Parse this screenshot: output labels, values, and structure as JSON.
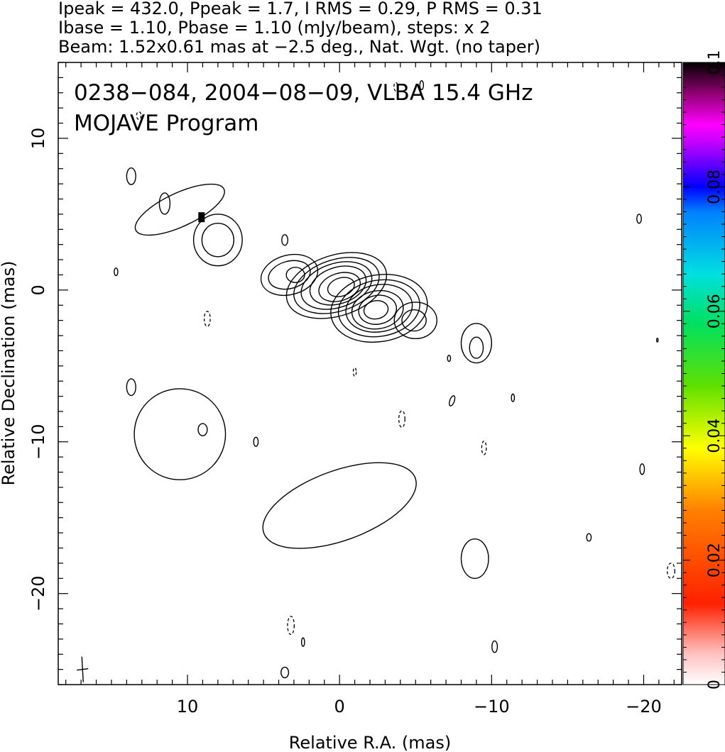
{
  "header": {
    "line1": "Ipeak = 432.0, Ppeak = 1.7, I RMS = 0.29, P RMS = 0.31",
    "line2": "Ibase = 1.10, Pbase = 1.10 (mJy/beam), steps: x 2",
    "line3": "Beam: 1.52x0.61 mas at −2.5 deg., Nat. Wgt. (no taper)"
  },
  "overlay": {
    "title": "0238−084, 2004−08−09, VLBA 15.4 GHz",
    "subtitle": "MOJAVE Program"
  },
  "chart_data": {
    "type": "contour",
    "xlabel": "Relative R.A. (mas)",
    "ylabel": "Relative Declination (mas)",
    "xlim": [
      18.5,
      -22.5
    ],
    "ylim": [
      -26.0,
      15.0
    ],
    "xticks": [
      10,
      0,
      -10,
      -20
    ],
    "xticklabels": [
      "10",
      "0",
      "−10",
      "−20"
    ],
    "yticks": [
      10,
      0,
      -10,
      -20
    ],
    "yticklabels": [
      "10",
      "0",
      "−10",
      "−20"
    ],
    "colorbar": {
      "min": 0,
      "max": 0.1,
      "ticks": [
        0,
        0.02,
        0.04,
        0.06,
        0.08,
        0.1
      ],
      "ticklabels": [
        "0",
        "0.02",
        "0.04",
        "0.06",
        "0.08",
        "0.1"
      ]
    },
    "contours": [
      {
        "cx": 0.2,
        "cy": 0.3,
        "rx": 3.4,
        "ry": 2.0,
        "angle": -18
      },
      {
        "cx": 0.2,
        "cy": 0.3,
        "rx": 2.9,
        "ry": 1.7,
        "angle": -18
      },
      {
        "cx": 0.2,
        "cy": 0.3,
        "rx": 2.4,
        "ry": 1.45,
        "angle": -18
      },
      {
        "cx": 0.1,
        "cy": 0.3,
        "rx": 1.9,
        "ry": 1.2,
        "angle": -18
      },
      {
        "cx": 0.0,
        "cy": 0.2,
        "rx": 1.4,
        "ry": 0.9,
        "angle": -18
      },
      {
        "cx": -0.1,
        "cy": 0.2,
        "rx": 0.9,
        "ry": 0.6,
        "angle": -18
      },
      {
        "cx": 3.3,
        "cy": 1.0,
        "rx": 1.9,
        "ry": 1.3,
        "angle": -15
      },
      {
        "cx": 3.3,
        "cy": 1.0,
        "rx": 1.4,
        "ry": 0.9,
        "angle": -15
      },
      {
        "cx": 2.9,
        "cy": 1.0,
        "rx": 0.6,
        "ry": 0.5,
        "angle": 0
      },
      {
        "cx": -2.6,
        "cy": -1.2,
        "rx": 3.2,
        "ry": 2.2,
        "angle": -10
      },
      {
        "cx": -2.6,
        "cy": -1.2,
        "rx": 2.7,
        "ry": 1.85,
        "angle": -10
      },
      {
        "cx": -2.6,
        "cy": -1.2,
        "rx": 2.2,
        "ry": 1.55,
        "angle": -10
      },
      {
        "cx": -2.5,
        "cy": -1.3,
        "rx": 1.7,
        "ry": 1.25,
        "angle": -10
      },
      {
        "cx": -2.5,
        "cy": -1.3,
        "rx": 1.25,
        "ry": 0.95,
        "angle": -10
      },
      {
        "cx": -2.4,
        "cy": -1.3,
        "rx": 0.8,
        "ry": 0.6,
        "angle": -10
      },
      {
        "cx": -5.0,
        "cy": -2.0,
        "rx": 1.4,
        "ry": 1.2,
        "angle": 0
      },
      {
        "cx": -4.9,
        "cy": -2.0,
        "rx": 0.8,
        "ry": 0.7,
        "angle": 0
      },
      {
        "cx": 8.0,
        "cy": 3.3,
        "rx": 1.6,
        "ry": 1.7,
        "angle": 0
      },
      {
        "cx": 8.0,
        "cy": 3.3,
        "rx": 1.05,
        "ry": 1.1,
        "angle": 0
      },
      {
        "cx": 10.5,
        "cy": 5.3,
        "rx": 3.2,
        "ry": 1.1,
        "angle": -25
      },
      {
        "cx": 11.5,
        "cy": 5.7,
        "rx": 0.35,
        "ry": 0.7,
        "angle": 0
      },
      {
        "cx": 13.7,
        "cy": 7.5,
        "rx": 0.3,
        "ry": 0.55,
        "angle": 0
      },
      {
        "cx": -9.0,
        "cy": -3.5,
        "rx": 1.0,
        "ry": 1.3,
        "angle": 0
      },
      {
        "cx": -9.0,
        "cy": -3.8,
        "rx": 0.45,
        "ry": 0.7,
        "angle": 0
      },
      {
        "cx": 10.5,
        "cy": -9.5,
        "rx": 3.0,
        "ry": 3.0,
        "angle": 0
      },
      {
        "cx": 13.7,
        "cy": -6.4,
        "rx": 0.3,
        "ry": 0.55,
        "angle": 0
      },
      {
        "cx": 9.0,
        "cy": -9.2,
        "rx": 0.3,
        "ry": 0.4,
        "angle": 0
      },
      {
        "cx": 0.0,
        "cy": -14.2,
        "rx": 5.3,
        "ry": 2.3,
        "angle": -20
      },
      {
        "cx": -8.9,
        "cy": -17.7,
        "rx": 0.9,
        "ry": 1.3,
        "angle": 0
      },
      {
        "cx": 3.6,
        "cy": 3.3,
        "rx": 0.2,
        "ry": 0.35,
        "angle": 0
      },
      {
        "cx": 14.7,
        "cy": 1.2,
        "rx": 0.12,
        "ry": 0.25,
        "angle": 0
      },
      {
        "cx": -19.7,
        "cy": 4.7,
        "rx": 0.15,
        "ry": 0.3,
        "angle": 0
      },
      {
        "cx": -7.2,
        "cy": -4.5,
        "rx": 0.1,
        "ry": 0.2,
        "angle": 0
      },
      {
        "cx": -7.4,
        "cy": -7.3,
        "rx": 0.15,
        "ry": 0.35,
        "angle": 20
      },
      {
        "cx": -11.4,
        "cy": -7.1,
        "rx": 0.1,
        "ry": 0.25,
        "angle": 0
      },
      {
        "cx": -19.9,
        "cy": -11.8,
        "rx": 0.15,
        "ry": 0.35,
        "angle": 0
      },
      {
        "cx": -16.4,
        "cy": -16.3,
        "rx": 0.15,
        "ry": 0.25,
        "angle": 0
      },
      {
        "cx": -10.2,
        "cy": -23.5,
        "rx": 0.18,
        "ry": 0.38,
        "angle": 0
      },
      {
        "cx": 5.5,
        "cy": -10.0,
        "rx": 0.15,
        "ry": 0.3,
        "angle": 0
      },
      {
        "cx": -20.9,
        "cy": -3.3,
        "rx": 0.05,
        "ry": 0.12,
        "angle": 0
      },
      {
        "cx": 3.6,
        "cy": -25.2,
        "rx": 0.25,
        "ry": 0.35,
        "angle": 0
      },
      {
        "cx": 2.4,
        "cy": -23.2,
        "rx": 0.1,
        "ry": 0.28,
        "angle": 0
      },
      {
        "cx": -5.4,
        "cy": 13.5,
        "rx": 0.12,
        "ry": 0.3,
        "angle": 0
      }
    ],
    "dashed_contours": [
      {
        "cx": 8.7,
        "cy": -1.9,
        "rx": 0.2,
        "ry": 0.5,
        "angle": 0
      },
      {
        "cx": -1.0,
        "cy": -5.4,
        "rx": 0.1,
        "ry": 0.28,
        "angle": 0
      },
      {
        "cx": -4.1,
        "cy": -8.5,
        "rx": 0.2,
        "ry": 0.55,
        "angle": 0
      },
      {
        "cx": -9.5,
        "cy": -10.4,
        "rx": 0.15,
        "ry": 0.45,
        "angle": 0
      },
      {
        "cx": -21.8,
        "cy": -18.5,
        "rx": 0.25,
        "ry": 0.5,
        "angle": 0
      },
      {
        "cx": 3.2,
        "cy": -22.1,
        "rx": 0.22,
        "ry": 0.6,
        "angle": 0
      },
      {
        "cx": -3.7,
        "cy": 13.4,
        "rx": 0.12,
        "ry": 0.28,
        "angle": 0
      },
      {
        "cx": 13.2,
        "cy": 11.5,
        "rx": 0.15,
        "ry": 0.25,
        "angle": 0
      }
    ],
    "polarization_pixels": [
      {
        "x": 9.1,
        "y": 4.8
      }
    ],
    "beam": {
      "x": 16.9,
      "y": -25.0
    }
  }
}
